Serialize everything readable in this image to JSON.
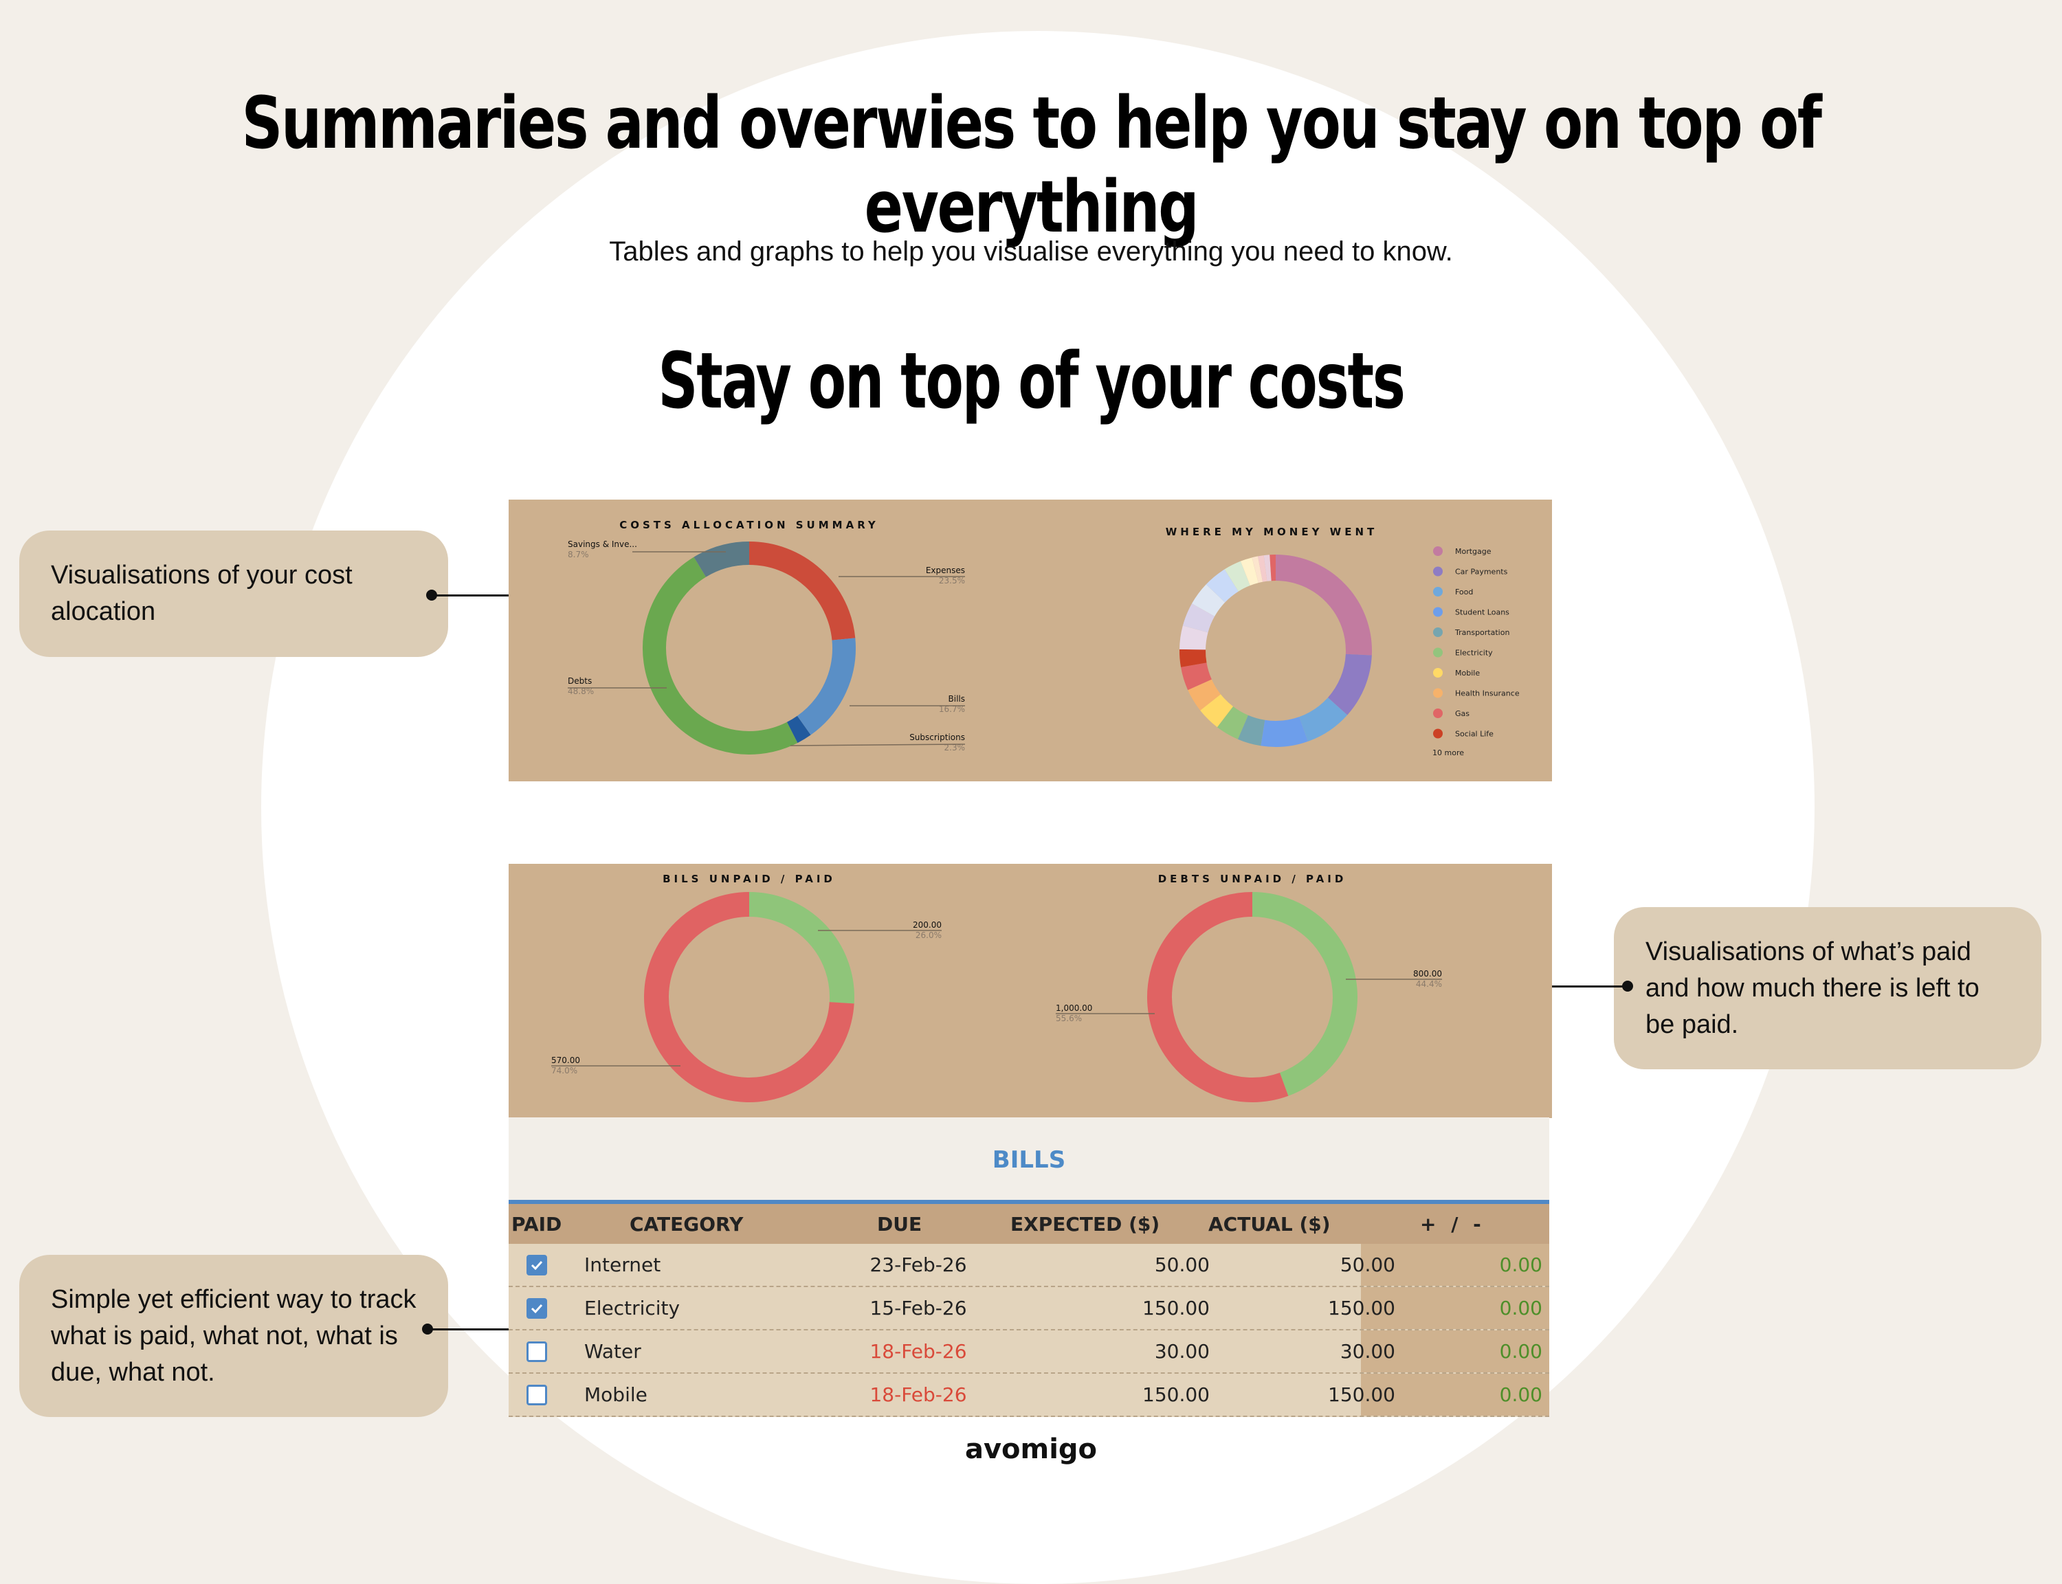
{
  "page": {
    "title": "Summaries and overwies to help you stay on top of everything",
    "subtitle": "Tables and graphs to help you visualise everything you need to know.",
    "section_title": "Stay on top of your costs",
    "logo": "avomigo"
  },
  "callouts": {
    "allocation": "Visualisations of your cost alocation",
    "paid": "Visualisations of what’s paid and how much there is left to be paid.",
    "track": "Simple yet efficient way to track what is paid, what not, what is due, what not."
  },
  "charts": {
    "costs_title": "COSTS ALLOCATION SUMMARY",
    "money_title": "WHERE MY MONEY WENT",
    "bills_title": "BILS UNPAID / PAID",
    "debts_title": "DEBTS UNPAID / PAID",
    "more": "10 more"
  },
  "colors": {
    "panel": "#cdb08e",
    "unpaid": "#e06363",
    "paid": "#8fc57a",
    "accent": "#4f88c6",
    "diff_green": "#4e8f2a",
    "due_red": "#d94a3a"
  },
  "chart_data": [
    {
      "type": "pie",
      "title": "COSTS ALLOCATION SUMMARY",
      "slices": [
        {
          "label": "Expenses",
          "value": 23.5,
          "color": "#cc4c3a"
        },
        {
          "label": "Bills",
          "value": 16.7,
          "color": "#5a8fc6"
        },
        {
          "label": "Subscriptions",
          "value": 2.3,
          "color": "#215a9e"
        },
        {
          "label": "Debts",
          "value": 48.8,
          "color": "#6aa84f"
        },
        {
          "label": "Savings & Inve...",
          "value": 8.7,
          "color": "#5b7a86"
        }
      ]
    },
    {
      "type": "pie",
      "title": "WHERE MY MONEY WENT",
      "legend": [
        "Mortgage",
        "Car Payments",
        "Food",
        "Student Loans",
        "Transportation",
        "Electricity",
        "Mobile",
        "Health Insurance",
        "Gas",
        "Social Life"
      ],
      "legend_colors": [
        "#c27ba0",
        "#8e7cc3",
        "#6fa8dc",
        "#6d9eeb",
        "#76a5af",
        "#93c47d",
        "#ffd966",
        "#f6b26b",
        "#e06666",
        "#cc4125"
      ],
      "slices": [
        {
          "label": "Mortgage",
          "value": 26,
          "color": "#c27ba0"
        },
        {
          "label": "Car Payments",
          "value": 11,
          "color": "#8e7cc3"
        },
        {
          "label": "Food",
          "value": 8,
          "color": "#6fa8dc"
        },
        {
          "label": "Student Loans",
          "value": 8,
          "color": "#6d9eeb"
        },
        {
          "label": "Transportation",
          "value": 4,
          "color": "#76a5af"
        },
        {
          "label": "Electricity",
          "value": 4,
          "color": "#93c47d"
        },
        {
          "label": "Mobile",
          "value": 4,
          "color": "#ffd966"
        },
        {
          "label": "Health Insurance",
          "value": 4,
          "color": "#f6b26b"
        },
        {
          "label": "Gas",
          "value": 4,
          "color": "#e06666"
        },
        {
          "label": "Social Life",
          "value": 3,
          "color": "#cc4125"
        },
        {
          "label": "",
          "value": 4,
          "color": "#e8d9e8"
        },
        {
          "label": "",
          "value": 4,
          "color": "#d9d2e9"
        },
        {
          "label": "",
          "value": 4,
          "color": "#dfe7f3"
        },
        {
          "label": "",
          "value": 4,
          "color": "#c9daf8"
        },
        {
          "label": "",
          "value": 3,
          "color": "#d9ead3"
        },
        {
          "label": "",
          "value": 2,
          "color": "#fff2cc"
        },
        {
          "label": "",
          "value": 1,
          "color": "#fce5cd"
        },
        {
          "label": "",
          "value": 1,
          "color": "#f4cccc"
        },
        {
          "label": "",
          "value": 1,
          "color": "#ead1dc"
        },
        {
          "label": "",
          "value": 1,
          "color": "#e06666"
        }
      ]
    },
    {
      "type": "pie",
      "title": "BILS UNPAID / PAID",
      "slices": [
        {
          "label": "200.00",
          "pct": "26.0%",
          "value": 200,
          "color": "#8fc57a"
        },
        {
          "label": "570.00",
          "pct": "74.0%",
          "value": 570,
          "color": "#e06363"
        }
      ]
    },
    {
      "type": "pie",
      "title": "DEBTS UNPAID / PAID",
      "slices": [
        {
          "label": "800.00",
          "pct": "44.4%",
          "value": 800,
          "color": "#8fc57a"
        },
        {
          "label": "1,000.00",
          "pct": "55.6%",
          "value": 1000,
          "color": "#e06363"
        }
      ]
    }
  ],
  "costs_labels": [
    {
      "name": "Savings & Inve...",
      "pct": "8.7%"
    },
    {
      "name": "Expenses",
      "pct": "23.5%"
    },
    {
      "name": "Debts",
      "pct": "48.8%"
    },
    {
      "name": "Bills",
      "pct": "16.7%"
    },
    {
      "name": "Subscriptions",
      "pct": "2.3%"
    }
  ],
  "bills": {
    "title": "BILLS",
    "columns": [
      "PAID",
      "CATEGORY",
      "DUE",
      "EXPECTED ($)",
      "ACTUAL ($)",
      "+ / -"
    ],
    "rows": [
      {
        "paid": true,
        "category": "Internet",
        "due": "23-Feb-26",
        "overdue": false,
        "expected": "50.00",
        "actual": "50.00",
        "diff": "0.00"
      },
      {
        "paid": true,
        "category": "Electricity",
        "due": "15-Feb-26",
        "overdue": false,
        "expected": "150.00",
        "actual": "150.00",
        "diff": "0.00"
      },
      {
        "paid": false,
        "category": "Water",
        "due": "18-Feb-26",
        "overdue": true,
        "expected": "30.00",
        "actual": "30.00",
        "diff": "0.00"
      },
      {
        "paid": false,
        "category": "Mobile",
        "due": "18-Feb-26",
        "overdue": true,
        "expected": "150.00",
        "actual": "150.00",
        "diff": "0.00"
      }
    ]
  }
}
